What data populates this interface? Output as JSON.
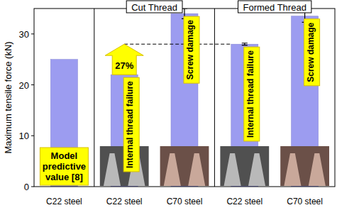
{
  "chart_data": {
    "type": "bar",
    "y_label": "Maximum tensile force (kN)",
    "categories": [
      "C22 steel",
      "C22 steel",
      "C70 steel",
      "C22 steel",
      "C70 steel"
    ],
    "group_labels": [
      null,
      "Cut Thread",
      "Cut Thread",
      "Formed Thread",
      "Formed Thread"
    ],
    "bar_labels": [
      "Model predictive value [8]",
      "Internal thread failure",
      "Screw damage",
      "Internal thread failure",
      "Screw damage"
    ],
    "values": [
      25,
      22,
      34,
      28,
      33.5
    ],
    "errors": [
      null,
      null,
      1.0,
      0.2,
      1.2
    ],
    "color": "#9c9cf0",
    "ylim": [
      0,
      35
    ],
    "yticks": [
      0,
      10,
      20,
      30
    ],
    "grid": false,
    "arrow_annotation": {
      "text": "27%",
      "from": 1,
      "to": 3
    }
  }
}
